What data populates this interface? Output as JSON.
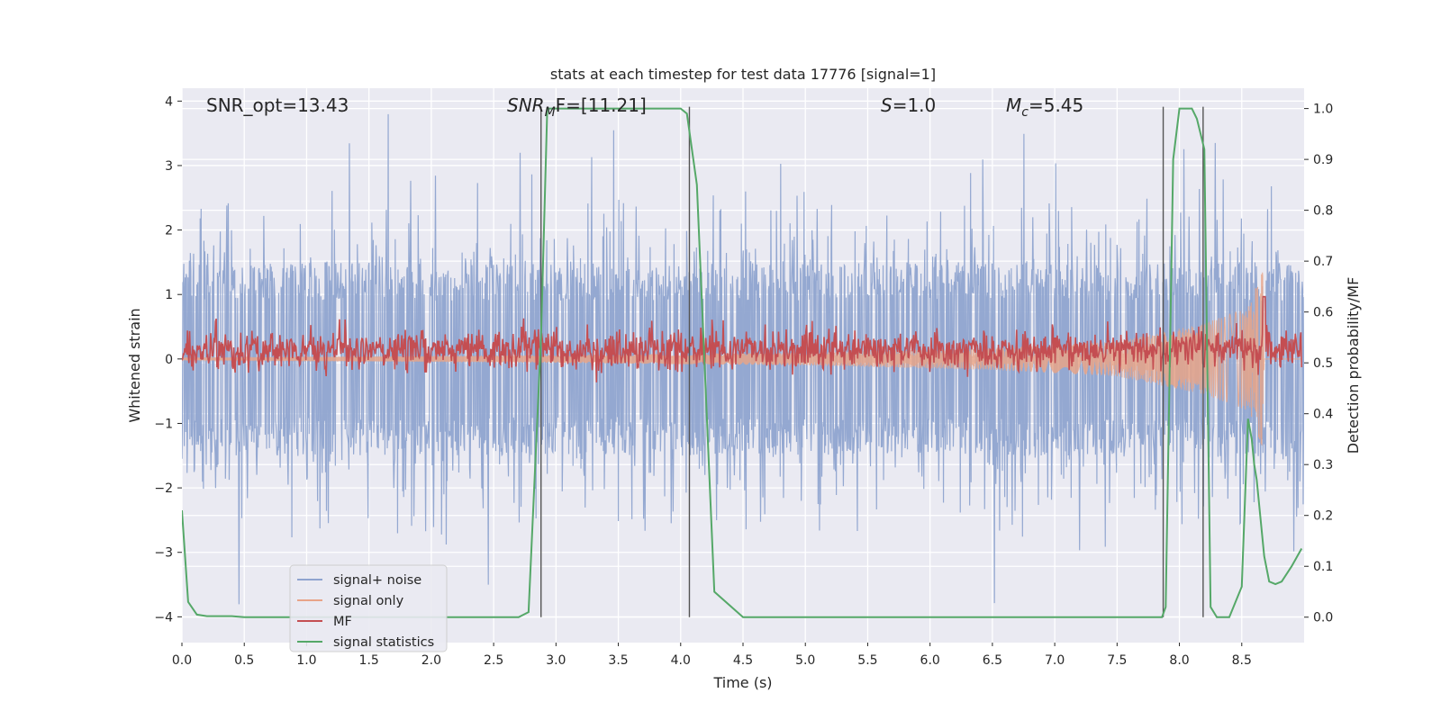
{
  "chart_data": {
    "type": "line",
    "title": "stats at each timestep for test data 17776 [signal=1]",
    "xlabel": "Time (s)",
    "ylabel_left": "Whitened strain",
    "ylabel_right": "Detection probability/MF",
    "xlim": [
      0,
      9.0
    ],
    "ylim_left": [
      -4.4,
      4.2
    ],
    "ylim_right": [
      -0.05,
      1.04
    ],
    "x_ticks": [
      "0.0",
      "0.5",
      "1.0",
      "1.5",
      "2.0",
      "2.5",
      "3.0",
      "3.5",
      "4.0",
      "4.5",
      "5.0",
      "5.5",
      "6.0",
      "6.5",
      "7.0",
      "7.5",
      "8.0",
      "8.5"
    ],
    "y_ticks_left": [
      "4",
      "3",
      "2",
      "1",
      "0",
      "−1",
      "−2",
      "−3",
      "−4"
    ],
    "y_ticks_right": [
      "1.0",
      "0.9",
      "0.8",
      "0.7",
      "0.6",
      "0.5",
      "0.4",
      "0.3",
      "0.2",
      "0.1",
      "0.0"
    ],
    "grid": true,
    "legend_position": "lower-left",
    "annotations": {
      "snr_opt": "SNR_opt=13.43",
      "snr_mf_main": "SNR",
      "snr_mf_sub": "M",
      "snr_mf_rest": "F=[11.21]",
      "s_main": "S",
      "s_rest": "=1.0",
      "mc_main": "M",
      "mc_sub": "c",
      "mc_rest": "=5.45"
    },
    "series": [
      {
        "name": "signal+ noise",
        "color": "#8fa4cf",
        "axis": "left",
        "description_values": "whitened noisy strain, roughly within ±3.9"
      },
      {
        "name": "signal only",
        "color": "#e8a488",
        "axis": "left",
        "chirp_amplitude_envelope": [
          [
            0,
            0.02
          ],
          [
            3.0,
            0.06
          ],
          [
            5.0,
            0.1
          ],
          [
            6.5,
            0.17
          ],
          [
            7.5,
            0.27
          ],
          [
            8.2,
            0.55
          ],
          [
            8.55,
            0.8
          ],
          [
            8.67,
            1.4
          ],
          [
            8.68,
            0.0
          ]
        ]
      },
      {
        "name": "MF",
        "color": "#c44e52",
        "axis": "right",
        "baseline": 0.525,
        "noise": 0.02
      },
      {
        "name": "signal statistics",
        "color": "#55a868",
        "axis": "right",
        "x": [
          0.0,
          0.05,
          0.12,
          0.2,
          0.4,
          0.5,
          1.0,
          2.0,
          2.7,
          2.78,
          2.88,
          2.93,
          3.0,
          3.5,
          4.0,
          4.05,
          4.13,
          4.2,
          4.27,
          4.5,
          5.0,
          6.0,
          7.0,
          7.86,
          7.89,
          7.95,
          8.0,
          8.1,
          8.14,
          8.2,
          8.25,
          8.3,
          8.35,
          8.4,
          8.5,
          8.55,
          8.58,
          8.6,
          8.62,
          8.68,
          8.72,
          8.77,
          8.82,
          8.9,
          8.98
        ],
        "values": [
          0.21,
          0.03,
          0.005,
          0.002,
          0.002,
          0.0,
          0.0,
          0.0,
          0.0,
          0.01,
          0.55,
          1.0,
          1.0,
          1.0,
          1.0,
          0.99,
          0.85,
          0.45,
          0.05,
          0.0,
          0.0,
          0.0,
          0.0,
          0.0,
          0.02,
          0.9,
          1.0,
          1.0,
          0.98,
          0.92,
          0.02,
          0.0,
          0.0,
          0.0,
          0.06,
          0.39,
          0.35,
          0.3,
          0.27,
          0.12,
          0.07,
          0.065,
          0.07,
          0.1,
          0.135
        ]
      }
    ],
    "vertical_markers_x": [
      2.88,
      4.07,
      7.87,
      8.19
    ],
    "legend": [
      {
        "label": "signal+ noise",
        "color": "#8fa4cf"
      },
      {
        "label": "signal only",
        "color": "#e8a488"
      },
      {
        "label": "MF",
        "color": "#c44e52"
      },
      {
        "label": "signal statistics",
        "color": "#55a868"
      }
    ]
  }
}
